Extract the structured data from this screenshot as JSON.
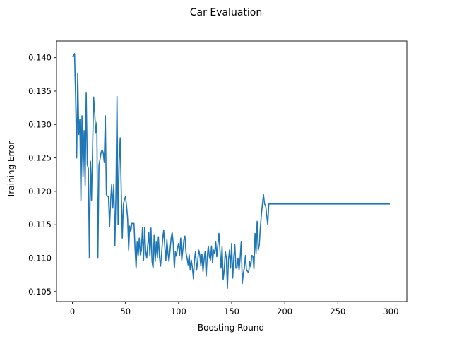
{
  "chart_data": {
    "type": "line",
    "title": "Car Evaluation",
    "xlabel": "Boosting Round",
    "ylabel": "Training Error",
    "xlim": [
      -15,
      315
    ],
    "ylim": [
      0.1035,
      0.1425
    ],
    "xticks": [
      0,
      50,
      100,
      150,
      200,
      250,
      300
    ],
    "yticks": [
      0.105,
      0.11,
      0.115,
      0.12,
      0.125,
      0.13,
      0.135,
      0.14
    ],
    "ytick_labels": [
      "0.105",
      "0.110",
      "0.115",
      "0.120",
      "0.125",
      "0.130",
      "0.135",
      "0.140"
    ],
    "grid": false,
    "line_color": "#1f77b4",
    "series": [
      {
        "values": [
          0.1401,
          0.1403,
          0.1406,
          0.1342,
          0.125,
          0.1377,
          0.1285,
          0.1308,
          0.1186,
          0.1313,
          0.1222,
          0.1291,
          0.1209,
          0.1348,
          0.124,
          0.1234,
          0.11,
          0.1245,
          0.1187,
          0.1264,
          0.1341,
          0.1317,
          0.1287,
          0.1303,
          0.11,
          0.1239,
          0.1248,
          0.1258,
          0.1262,
          0.1258,
          0.1243,
          0.1313,
          0.1195,
          0.1193,
          0.1192,
          0.1147,
          0.1185,
          0.121,
          0.1175,
          0.121,
          0.1119,
          0.1195,
          0.1342,
          0.115,
          0.124,
          0.128,
          0.1201,
          0.113,
          0.118,
          0.1188,
          0.1192,
          0.1178,
          0.116,
          0.1112,
          0.1148,
          0.114,
          0.1152,
          0.1152,
          0.1152,
          0.1115,
          0.1085,
          0.1125,
          0.1103,
          0.113,
          0.1105,
          0.1112,
          0.1146,
          0.1097,
          0.1146,
          0.111,
          0.11,
          0.112,
          0.1138,
          0.1103,
          0.1145,
          0.1095,
          0.1085,
          0.1134,
          0.1095,
          0.1125,
          0.11,
          0.1132,
          0.1102,
          0.1088,
          0.1106,
          0.1128,
          0.1142,
          0.1118,
          0.1096,
          0.1128,
          0.1108,
          0.1095,
          0.1112,
          0.113,
          0.1138,
          0.1122,
          0.1085,
          0.111,
          0.1103,
          0.1115,
          0.1122,
          0.1104,
          0.113,
          0.1097,
          0.1112,
          0.1127,
          0.1133,
          0.1108,
          0.11,
          0.109,
          0.1105,
          0.1082,
          0.1097,
          0.1086,
          0.1069,
          0.1098,
          0.111,
          0.1082,
          0.1095,
          0.1112,
          0.1105,
          0.1088,
          0.1106,
          0.108,
          0.1097,
          0.111,
          0.1073,
          0.1102,
          0.1118,
          0.1102,
          0.1097,
          0.1118,
          0.1093,
          0.1112,
          0.1107,
          0.1125,
          0.1102,
          0.112,
          0.1137,
          0.1111,
          0.1085,
          0.1117,
          0.1068,
          0.1082,
          0.111,
          0.11,
          0.1055,
          0.1097,
          0.1112,
          0.1085,
          0.1122,
          0.107,
          0.11,
          0.112,
          0.1085,
          0.1085,
          0.11,
          0.1082,
          0.11,
          0.1125,
          0.1062,
          0.1078,
          0.1085,
          0.1104,
          0.1082,
          0.108,
          0.1078,
          0.1095,
          0.1087,
          0.1104,
          0.1103,
          0.1084,
          0.1137,
          0.1107,
          0.1155,
          0.1112,
          0.1119,
          0.1145,
          0.1165,
          0.1181,
          0.1195,
          0.1181,
          0.1179,
          0.1165,
          0.115,
          0.1181,
          0.1181,
          0.1181,
          0.1181,
          0.1181,
          0.1181,
          0.1181,
          0.1181,
          0.1181,
          0.1181,
          0.1181,
          0.1181,
          0.1181,
          0.1181,
          0.1181,
          0.1181,
          0.1181,
          0.1181,
          0.1181,
          0.1181,
          0.1181,
          0.1181,
          0.1181,
          0.1181,
          0.1181,
          0.1181,
          0.1181,
          0.1181,
          0.1181,
          0.1181,
          0.1181,
          0.1181,
          0.1181,
          0.1181,
          0.1181,
          0.1181,
          0.1181,
          0.1181,
          0.1181,
          0.1181,
          0.1181,
          0.1181,
          0.1181,
          0.1181,
          0.1181,
          0.1181,
          0.1181,
          0.1181,
          0.1181,
          0.1181,
          0.1181,
          0.1181,
          0.1181,
          0.1181,
          0.1181,
          0.1181,
          0.1181,
          0.1181,
          0.1181,
          0.1181,
          0.1181,
          0.1181,
          0.1181,
          0.1181,
          0.1181,
          0.1181,
          0.1181,
          0.1181,
          0.1181,
          0.1181,
          0.1181,
          0.1181,
          0.1181,
          0.1181,
          0.1181,
          0.1181,
          0.1181,
          0.1181,
          0.1181,
          0.1181,
          0.1181,
          0.1181,
          0.1181,
          0.1181,
          0.1181,
          0.1181,
          0.1181,
          0.1181,
          0.1181,
          0.1181,
          0.1181,
          0.1181,
          0.1181,
          0.1181,
          0.1181,
          0.1181,
          0.1181,
          0.1181,
          0.1181,
          0.1181,
          0.1181,
          0.1181,
          0.1181,
          0.1181,
          0.1181,
          0.1181,
          0.1181,
          0.1181,
          0.1181,
          0.1181,
          0.1181,
          0.1181,
          0.1181,
          0.1181,
          0.1181
        ]
      }
    ]
  }
}
